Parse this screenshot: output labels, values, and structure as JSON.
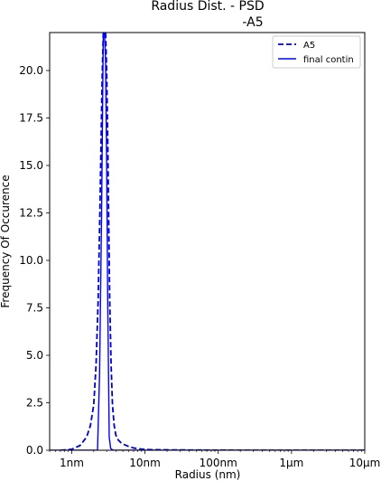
{
  "chart_data": {
    "type": "line",
    "title_line1": "Radius Dist. - PSD",
    "title_line2": "-A5",
    "xlabel": "Radius (nm)",
    "ylabel": "Frequency Of Occurence",
    "x_scale": "log",
    "xlim": [
      0.5,
      10000
    ],
    "ylim": [
      0,
      22
    ],
    "grid": false,
    "legend_position": "top-right",
    "x_ticks": [
      {
        "value": 1,
        "label": "1nm"
      },
      {
        "value": 10,
        "label": "10nm"
      },
      {
        "value": 100,
        "label": "100nm"
      },
      {
        "value": 1000,
        "label": "1µm"
      },
      {
        "value": 10000,
        "label": "10µm"
      }
    ],
    "y_ticks": [
      {
        "value": 0,
        "label": "0.0"
      },
      {
        "value": 2.5,
        "label": "2.5"
      },
      {
        "value": 5,
        "label": "5.0"
      },
      {
        "value": 7.5,
        "label": "7.5"
      },
      {
        "value": 10,
        "label": "10.0"
      },
      {
        "value": 12.5,
        "label": "12.5"
      },
      {
        "value": 15,
        "label": "15.0"
      },
      {
        "value": 17.5,
        "label": "17.5"
      },
      {
        "value": 20,
        "label": "20.0"
      }
    ],
    "series": [
      {
        "name": "A5",
        "style": "dashed",
        "color": "#0000cc",
        "x": [
          0.7,
          1.0,
          1.3,
          1.6,
          1.8,
          2.0,
          2.15,
          2.3,
          2.45,
          2.6,
          2.7,
          2.8,
          2.9,
          3.0,
          3.1,
          3.2,
          3.3,
          3.45,
          3.6,
          3.8,
          4.0,
          4.3,
          4.7,
          5.2,
          6.0,
          7.0,
          9.0,
          12.0,
          20.0,
          50.0,
          200.0,
          1000.0,
          5000.0,
          10000.0
        ],
        "y": [
          0.0,
          0.05,
          0.25,
          0.7,
          1.3,
          2.4,
          4.5,
          8.0,
          13.5,
          19.5,
          22.0,
          22.0,
          22.0,
          20.0,
          16.5,
          12.0,
          8.0,
          4.5,
          2.4,
          1.3,
          0.8,
          0.55,
          0.4,
          0.3,
          0.2,
          0.12,
          0.06,
          0.03,
          0.02,
          0.01,
          0.0,
          0.0,
          0.0,
          0.0
        ]
      },
      {
        "name": "final contin",
        "style": "solid",
        "color": "#0000ff",
        "x": [
          0.5,
          2.25,
          2.4,
          2.55,
          2.7,
          2.8,
          2.9,
          3.0,
          3.1,
          3.25,
          3.4,
          3.6,
          3.8,
          4.0,
          10000.0
        ],
        "y": [
          0.0,
          0.0,
          4.0,
          12.0,
          22.0,
          22.0,
          20.5,
          15.0,
          8.0,
          0.7,
          0.1,
          0.02,
          0.0,
          0.0,
          0.0
        ]
      }
    ]
  }
}
